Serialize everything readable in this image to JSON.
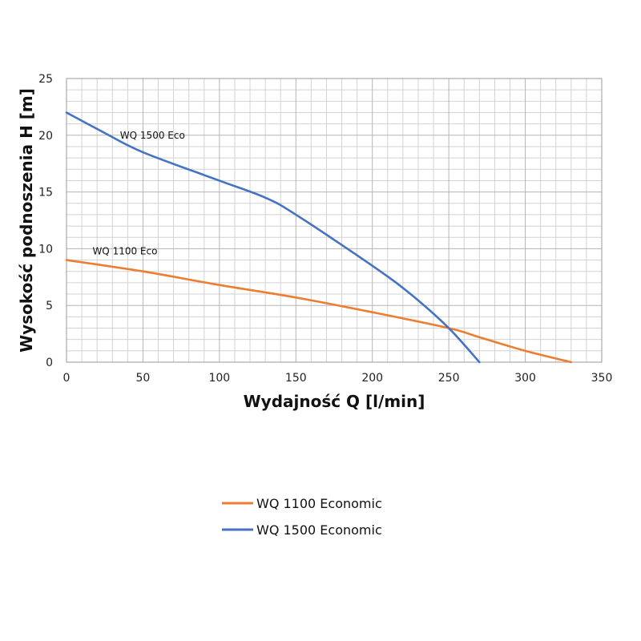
{
  "chart_data": {
    "type": "line",
    "xlabel": "Wydajność Q [l/min]",
    "ylabel": "Wysokość podnoszenia H [m]",
    "xlim": [
      0,
      350
    ],
    "ylim": [
      0,
      25
    ],
    "xticks": [
      0,
      50,
      100,
      150,
      200,
      250,
      300,
      350
    ],
    "yticks": [
      0,
      5,
      10,
      15,
      20,
      25
    ],
    "grid": true,
    "legend_position": "bottom",
    "series": [
      {
        "name": "WQ 1100 Economic",
        "color": "#ED7D31",
        "x": [
          0,
          50,
          100,
          150,
          200,
          250,
          270,
          300,
          330
        ],
        "y": [
          9,
          8,
          6.8,
          5.7,
          4.4,
          3,
          2.2,
          1,
          0
        ]
      },
      {
        "name": "WQ 1500 Economic",
        "color": "#4472C4",
        "x": [
          0,
          25,
          50,
          100,
          130,
          150,
          200,
          225,
          250,
          270
        ],
        "y": [
          22,
          20.2,
          18.5,
          16,
          14.5,
          13,
          8.5,
          6,
          3,
          0
        ]
      }
    ],
    "annotations": [
      {
        "text": "WQ 1500 Eco",
        "x": 35,
        "y": 19.7
      },
      {
        "text": "WQ 1100 Eco",
        "x": 17,
        "y": 9.5
      }
    ]
  }
}
